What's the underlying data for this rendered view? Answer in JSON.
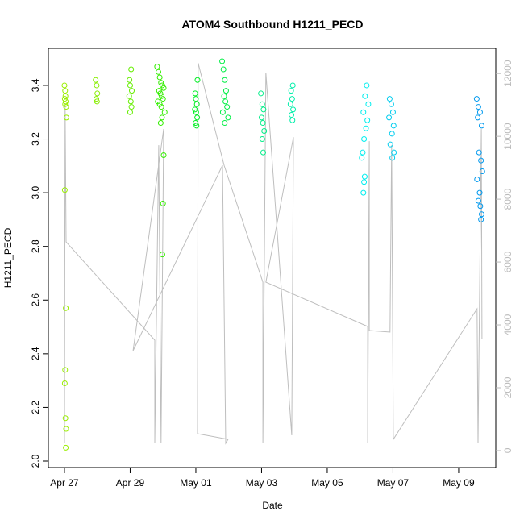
{
  "chart_data": {
    "type": "scatter",
    "title": "ATOM4 Southbound H1211_PECD",
    "xlabel": "Date",
    "ylabel": "H1211_PECD",
    "xlim": [
      -0.49,
      13.13
    ],
    "xticks": [
      {
        "value": 0,
        "label": "Apr 27"
      },
      {
        "value": 2,
        "label": "Apr 29"
      },
      {
        "value": 4,
        "label": "May 01"
      },
      {
        "value": 6,
        "label": "May 03"
      },
      {
        "value": 8,
        "label": "May 05"
      },
      {
        "value": 10,
        "label": "May 07"
      },
      {
        "value": 12,
        "label": "May 09"
      }
    ],
    "ylim": [
      1.976,
      3.538
    ],
    "yticks": [
      {
        "value": 2,
        "label": "2.0"
      },
      2.2,
      2.4,
      2.6,
      2.8,
      {
        "value": 3,
        "label": "3.0"
      },
      3.2,
      3.4
    ],
    "y2lim": [
      -540,
      12800
    ],
    "y2ticks": [
      0,
      2000,
      4000,
      6000,
      8000,
      10000,
      12000
    ],
    "series": [
      {
        "color": "#99ee00",
        "x": [
          0,
          0.02,
          0.03,
          0.01,
          0.04,
          0.02,
          0.05,
          0.06,
          0.01,
          0.04,
          0.02,
          0.01,
          0.03,
          0.05,
          0.04
        ],
        "values": [
          3.4,
          3.38,
          3.36,
          3.35,
          3.34,
          3.33,
          3.32,
          3.28,
          3.01,
          2.57,
          2.34,
          2.29,
          2.16,
          2.12,
          2.05
        ]
      },
      {
        "color": "#88ee00",
        "x": [
          0.95,
          0.98,
          1.0,
          0.97,
          0.99
        ],
        "values": [
          3.42,
          3.4,
          3.37,
          3.35,
          3.34
        ]
      },
      {
        "color": "#66ee00",
        "x": [
          2.03,
          1.98,
          2.0,
          2.05,
          1.97,
          2.02,
          2.04,
          2.0
        ],
        "values": [
          3.46,
          3.42,
          3.4,
          3.38,
          3.36,
          3.34,
          3.32,
          3.3
        ]
      },
      {
        "color": "#33ee00",
        "x": [
          2.82,
          2.86,
          2.9,
          2.94,
          2.98,
          3.02,
          2.88,
          2.92,
          2.96,
          3.0,
          2.84,
          2.9,
          2.95,
          3.05,
          2.97,
          2.93,
          3.02,
          3.0,
          2.98
        ],
        "values": [
          3.47,
          3.45,
          3.43,
          3.41,
          3.4,
          3.39,
          3.38,
          3.37,
          3.36,
          3.35,
          3.34,
          3.33,
          3.32,
          3.3,
          3.28,
          3.26,
          3.14,
          2.96,
          2.77
        ]
      },
      {
        "color": "#00ee22",
        "x": [
          4.05,
          3.98,
          4.0,
          4.03,
          3.97,
          4.01,
          4.04,
          3.99,
          4.02
        ],
        "values": [
          3.42,
          3.37,
          3.35,
          3.33,
          3.31,
          3.3,
          3.28,
          3.26,
          3.25
        ]
      },
      {
        "color": "#00ee44",
        "x": [
          4.8,
          4.84,
          4.88,
          4.92,
          4.86,
          4.9,
          4.95,
          4.82,
          4.98,
          4.88
        ],
        "values": [
          3.49,
          3.46,
          3.42,
          3.38,
          3.36,
          3.34,
          3.32,
          3.3,
          3.28,
          3.26
        ]
      },
      {
        "color": "#00ee88",
        "x": [
          5.98,
          6.02,
          6.06,
          6.0,
          6.04,
          6.08,
          6.02,
          6.05
        ],
        "values": [
          3.37,
          3.33,
          3.31,
          3.28,
          3.26,
          3.23,
          3.2,
          3.15
        ]
      },
      {
        "color": "#00eeaa",
        "x": [
          6.95,
          6.9,
          6.93,
          6.88,
          6.96,
          6.91,
          6.94
        ],
        "values": [
          3.4,
          3.38,
          3.35,
          3.33,
          3.31,
          3.29,
          3.27
        ]
      },
      {
        "color": "#00eeee",
        "x": [
          9.2,
          9.15,
          9.25,
          9.1,
          9.22,
          9.18,
          9.12,
          9.08,
          9.05,
          9.14,
          9.1,
          9.12
        ],
        "values": [
          3.4,
          3.36,
          3.33,
          3.3,
          3.27,
          3.24,
          3.2,
          3.15,
          3.13,
          3.06,
          3.0,
          3.04
        ]
      },
      {
        "color": "#00ccee",
        "x": [
          9.9,
          9.95,
          10.0,
          9.88,
          10.02,
          9.97,
          9.92,
          10.03,
          9.98
        ],
        "values": [
          3.35,
          3.33,
          3.3,
          3.28,
          3.25,
          3.22,
          3.18,
          3.15,
          3.13
        ]
      },
      {
        "color": "#0099ee",
        "x": [
          12.55,
          12.6,
          12.65,
          12.58,
          12.7,
          12.62,
          12.68,
          12.72,
          12.56,
          12.64,
          12.6,
          12.66,
          12.7,
          12.68
        ],
        "values": [
          3.35,
          3.32,
          3.3,
          3.28,
          3.25,
          3.15,
          3.12,
          3.08,
          3.05,
          3.0,
          2.97,
          2.95,
          2.92,
          2.9
        ]
      },
      {
        "type": "line",
        "axis": "y2",
        "color": "#bebebe",
        "x": [
          0,
          0.02,
          0.05,
          2.75,
          2.75,
          2.87,
          2.94,
          3.02,
          2.09,
          4.81,
          4.91,
          4.98,
          4.05,
          4.07,
          4.86,
          6.04,
          6.04,
          6.13,
          6.92,
          6.97,
          6.13,
          9.23,
          9.23,
          9.28,
          9.28,
          9.91,
          9.96,
          10.01,
          12.56,
          12.59,
          12.69,
          12.71
        ],
        "values": [
          231,
          11000,
          6641,
          3513,
          231,
          9718,
          231,
          10231,
          3179,
          9077,
          231,
          359,
          538,
          12333,
          9077,
          5359,
          231,
          12026,
          487,
          9974,
          5359,
          3949,
          231,
          9846,
          3821,
          3769,
          9718,
          359,
          4513,
          231,
          10231,
          3564
        ]
      }
    ]
  }
}
